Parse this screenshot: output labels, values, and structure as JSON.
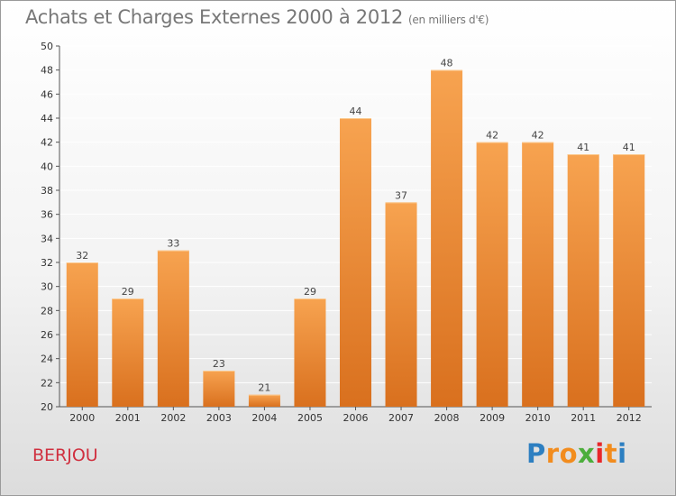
{
  "title": "Achats et Charges Externes 2000 à 2012",
  "unit_note": "(en milliers d'€)",
  "commune": "BERJOU",
  "logo": {
    "letters": [
      "P",
      "r",
      "o",
      "x",
      "i",
      "t",
      "i"
    ],
    "colors": [
      "#2d7fc1",
      "#f28c1e",
      "#f28c1e",
      "#4cae3c",
      "#e8262a",
      "#f28c1e",
      "#2d7fc1"
    ]
  },
  "colors": {
    "bar_light": "#f7a350",
    "bar_dark": "#d9701e",
    "grid": "#ffffff",
    "title": "#777777",
    "commune": "#d0303f"
  },
  "chart_data": {
    "type": "bar",
    "title": "Achats et Charges Externes 2000 à 2012",
    "ylabel": "en milliers d'€",
    "categories": [
      "2000",
      "2001",
      "2002",
      "2003",
      "2004",
      "2005",
      "2006",
      "2007",
      "2008",
      "2009",
      "2010",
      "2011",
      "2012"
    ],
    "values": [
      32,
      29,
      33,
      23,
      21,
      29,
      44,
      37,
      48,
      42,
      42,
      41,
      41
    ],
    "ylim": [
      20,
      50
    ],
    "yticks": [
      20,
      22,
      24,
      26,
      28,
      30,
      32,
      34,
      36,
      38,
      40,
      42,
      44,
      46,
      48,
      50
    ],
    "grid": true
  }
}
